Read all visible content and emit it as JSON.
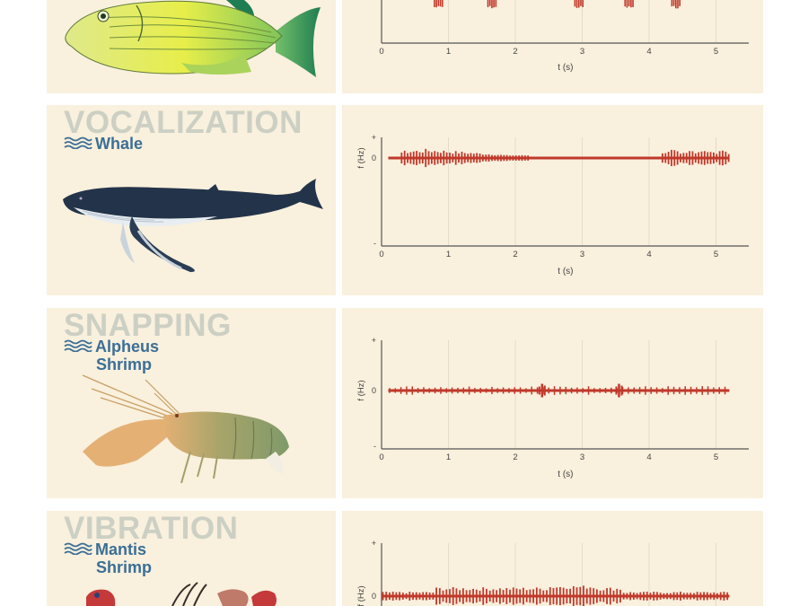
{
  "panels": [
    {
      "category": "",
      "species_line1": "",
      "species_line2": "",
      "animal_icon": "fish-illustration",
      "chart": {
        "xlabel": "t (s)",
        "ylabel": "",
        "yticks": [
          "",
          "-"
        ],
        "xticks": [
          "0",
          "1",
          "2",
          "3",
          "4",
          "5"
        ]
      }
    },
    {
      "category": "VOCALIZATION",
      "species_line1": "Whale",
      "species_line2": "",
      "animal_icon": "whale-illustration",
      "chart": {
        "xlabel": "t (s)",
        "ylabel": "f (Hz)",
        "yticks": [
          "+",
          "0",
          "-"
        ],
        "xticks": [
          "0",
          "1",
          "2",
          "3",
          "4",
          "5"
        ]
      }
    },
    {
      "category": "SNAPPING",
      "species_line1": "Alpheus",
      "species_line2": "Shrimp",
      "animal_icon": "shrimp-illustration",
      "chart": {
        "xlabel": "t (s)",
        "ylabel": "f (Hz)",
        "yticks": [
          "+",
          "0",
          "-"
        ],
        "xticks": [
          "0",
          "1",
          "2",
          "3",
          "4",
          "5"
        ]
      }
    },
    {
      "category": "VIBRATION",
      "species_line1": "Mantis",
      "species_line2": "Shrimp",
      "animal_icon": "mantis-shrimp-illustration",
      "chart": {
        "xlabel": "",
        "ylabel": "f (Hz)",
        "yticks": [
          "+",
          "0"
        ],
        "xticks": []
      }
    }
  ],
  "chart_data": [
    {
      "type": "line",
      "title": "",
      "xlabel": "t (s)",
      "ylabel": "",
      "xlim": [
        0,
        5.5
      ],
      "series": [
        {
          "color": "#c0392b",
          "bursts": [
            0.85,
            1.65,
            2.95,
            3.7,
            4.4
          ]
        }
      ]
    },
    {
      "type": "line",
      "title": "",
      "xlabel": "t (s)",
      "ylabel": "f (Hz)",
      "xlim": [
        0,
        5.5
      ],
      "ylim": [
        -1,
        1
      ],
      "series": [
        {
          "color": "#c0392b",
          "x_range": [
            0.1,
            5.2
          ],
          "active_intervals": [
            [
              0.1,
              2.2
            ],
            [
              4.0,
              5.2
            ]
          ]
        }
      ]
    },
    {
      "type": "line",
      "title": "",
      "xlabel": "t (s)",
      "ylabel": "f (Hz)",
      "xlim": [
        0,
        5.5
      ],
      "ylim": [
        -1,
        1
      ],
      "series": [
        {
          "color": "#c0392b",
          "x_range": [
            0.1,
            5.2
          ],
          "snaps": [
            2.4,
            3.55
          ]
        }
      ]
    },
    {
      "type": "line",
      "title": "",
      "xlabel": "",
      "ylabel": "f (Hz)",
      "xlim": [
        0,
        5.5
      ],
      "ylim": [
        -1,
        1
      ],
      "series": [
        {
          "color": "#c0392b",
          "x_range": [
            0.0,
            5.2
          ],
          "peak_interval": [
            0.8,
            3.6
          ]
        }
      ]
    }
  ],
  "colors": {
    "card_bg": "#f9f0dd",
    "category_text": "#ccd0c4",
    "species_text": "#3b6f96",
    "signal": "#c0392b",
    "axis": "#555555",
    "grid": "#e3dccb"
  }
}
